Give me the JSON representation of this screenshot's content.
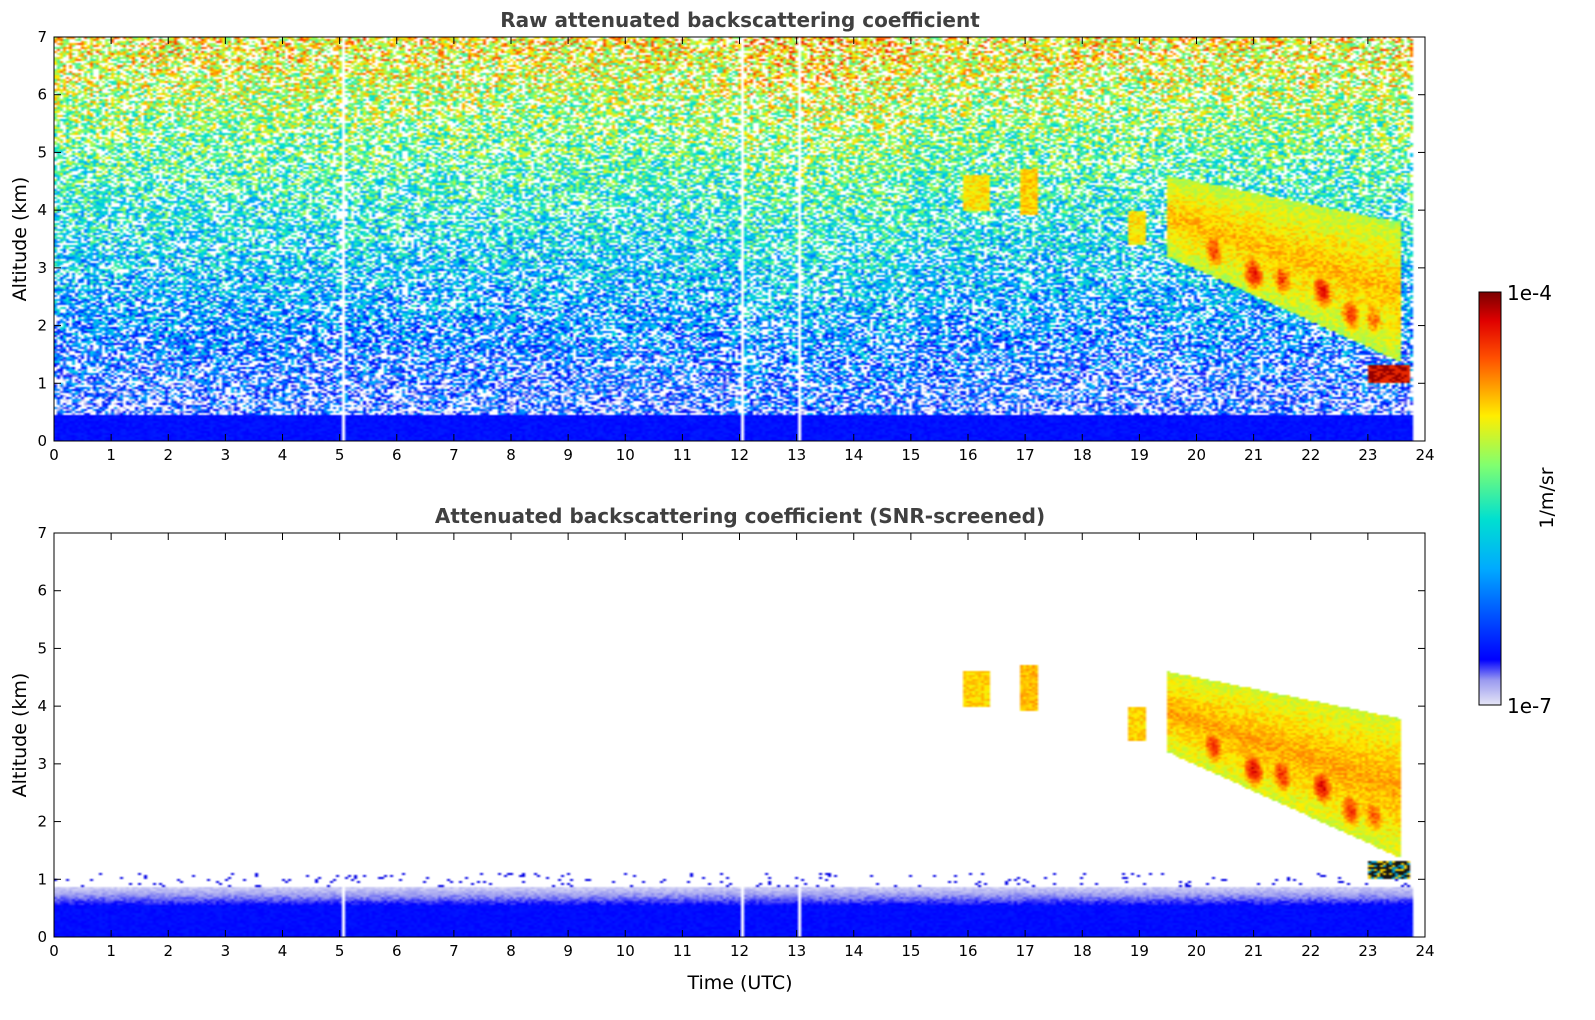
{
  "chart_data": [
    {
      "type": "heatmap",
      "title": "Raw attenuated backscattering coefficient",
      "xlabel": "",
      "ylabel": "Altitude (km)",
      "xlim": [
        0,
        24
      ],
      "ylim": [
        0,
        7
      ],
      "xticks": [
        "0",
        "1",
        "2",
        "3",
        "4",
        "5",
        "6",
        "7",
        "8",
        "9",
        "10",
        "11",
        "12",
        "13",
        "14",
        "15",
        "16",
        "17",
        "18",
        "19",
        "20",
        "21",
        "22",
        "23",
        "24"
      ],
      "yticks": [
        "0",
        "1",
        "2",
        "3",
        "4",
        "5",
        "6",
        "7"
      ],
      "data_until": 23.8,
      "gaps_x": [
        5.05,
        12.05,
        13.05
      ],
      "features": [
        {
          "kind": "noise-gradient",
          "x": [
            0,
            23.8
          ],
          "y": [
            0.45,
            7
          ]
        },
        {
          "kind": "boundary-layer",
          "x": [
            0,
            23.8
          ],
          "y": [
            0,
            0.45
          ]
        },
        {
          "kind": "cirrus",
          "x": [
            15.9,
            17.2
          ],
          "y": [
            3.9,
            4.7
          ]
        },
        {
          "kind": "cirrus",
          "x": [
            18.8,
            19.1
          ],
          "y": [
            3.4,
            4.0
          ]
        },
        {
          "kind": "cirrus",
          "x": [
            19.5,
            23.6
          ],
          "y": [
            1.7,
            5.2
          ]
        },
        {
          "kind": "liquid-cloud",
          "x": [
            23.0,
            23.75
          ],
          "y": [
            1.0,
            1.3
          ]
        }
      ]
    },
    {
      "type": "heatmap",
      "title": "Attenuated backscattering coefficient (SNR-screened)",
      "xlabel": "Time (UTC)",
      "ylabel": "Altitude (km)",
      "xlim": [
        0,
        24
      ],
      "ylim": [
        0,
        7
      ],
      "xticks": [
        "0",
        "1",
        "2",
        "3",
        "4",
        "5",
        "6",
        "7",
        "8",
        "9",
        "10",
        "11",
        "12",
        "13",
        "14",
        "15",
        "16",
        "17",
        "18",
        "19",
        "20",
        "21",
        "22",
        "23",
        "24"
      ],
      "yticks": [
        "0",
        "1",
        "2",
        "3",
        "4",
        "5",
        "6",
        "7"
      ],
      "data_until": 23.8,
      "gaps_x": [
        5.05,
        12.05,
        13.05
      ],
      "features": [
        {
          "kind": "boundary-layer",
          "x": [
            0,
            23.8
          ],
          "y": [
            0,
            0.9
          ]
        },
        {
          "kind": "cirrus",
          "x": [
            15.9,
            17.2
          ],
          "y": [
            3.9,
            4.7
          ]
        },
        {
          "kind": "cirrus",
          "x": [
            18.8,
            19.1
          ],
          "y": [
            3.4,
            4.0
          ]
        },
        {
          "kind": "cirrus",
          "x": [
            19.5,
            23.6
          ],
          "y": [
            1.7,
            5.2
          ]
        },
        {
          "kind": "liquid-cloud",
          "x": [
            23.0,
            23.75
          ],
          "y": [
            1.0,
            1.3
          ]
        }
      ]
    }
  ],
  "colorbar": {
    "label": "1/m/sr",
    "min_label": "1e-7",
    "max_label": "1e-4",
    "scale": "log",
    "colormap": "jet"
  }
}
